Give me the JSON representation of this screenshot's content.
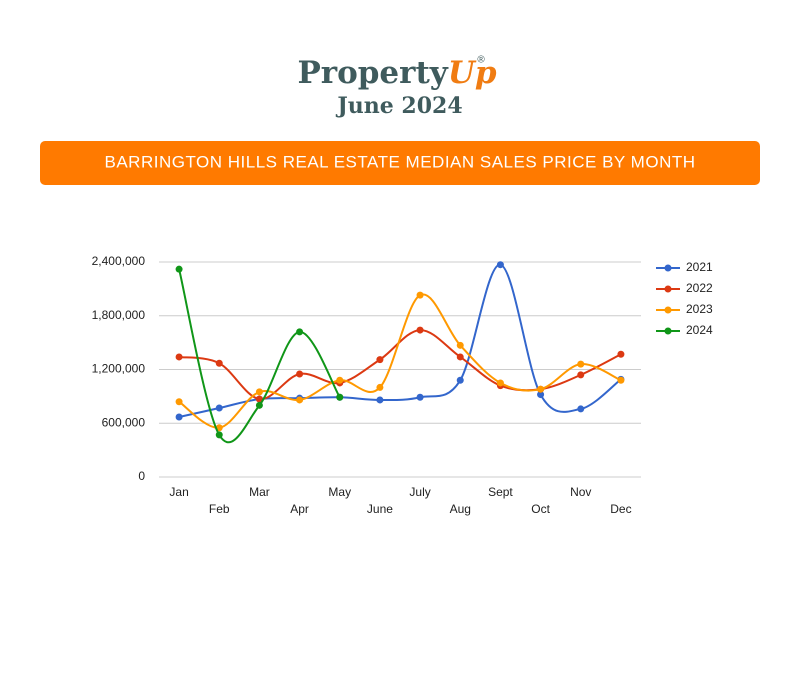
{
  "header": {
    "brand": "Property",
    "brand_accent": "Up",
    "registered": "®",
    "date": "June 2024"
  },
  "chart_data": {
    "type": "line",
    "title": "BARRINGTON HILLS REAL ESTATE MEDIAN SALES PRICE BY MONTH",
    "categories": [
      "Jan",
      "Feb",
      "Mar",
      "Apr",
      "May",
      "June",
      "July",
      "Aug",
      "Sept",
      "Oct",
      "Nov",
      "Dec"
    ],
    "series": [
      {
        "name": "2021",
        "color": "#3366cc",
        "values": [
          670000,
          770000,
          870000,
          880000,
          890000,
          860000,
          890000,
          1080000,
          2370000,
          920000,
          760000,
          1090000
        ]
      },
      {
        "name": "2022",
        "color": "#dc3912",
        "values": [
          1340000,
          1270000,
          870000,
          1150000,
          1050000,
          1310000,
          1640000,
          1340000,
          1020000,
          980000,
          1140000,
          1370000
        ]
      },
      {
        "name": "2023",
        "color": "#ff9900",
        "values": [
          840000,
          550000,
          950000,
          860000,
          1080000,
          1000000,
          2030000,
          1470000,
          1050000,
          980000,
          1260000,
          1080000
        ]
      },
      {
        "name": "2024",
        "color": "#109618",
        "values": [
          2320000,
          470000,
          800000,
          1620000,
          890000,
          null,
          null,
          null,
          null,
          null,
          null,
          null
        ]
      }
    ],
    "ylim": [
      0,
      2400000
    ],
    "yticks": [
      0,
      {
        "value": 600000,
        "label": "600,000"
      },
      {
        "value": 1200000,
        "label": "1,200,000"
      },
      {
        "value": 1800000,
        "label": "1,800,000"
      },
      {
        "value": 2400000,
        "label": "2,400,000"
      }
    ],
    "grid": true,
    "smooth": true,
    "legend": "right"
  }
}
